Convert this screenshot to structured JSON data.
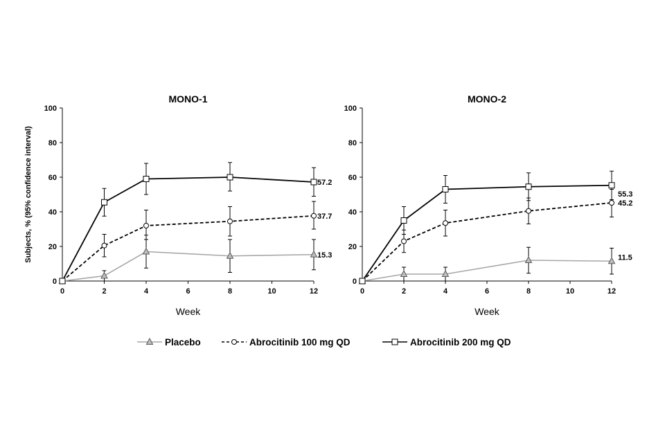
{
  "chart_data": [
    {
      "type": "line",
      "title": "MONO-1",
      "xlabel": "Week",
      "ylabel": "Subjects, % (95% confidence interval)",
      "xlim": [
        0,
        12
      ],
      "ylim": [
        0,
        100
      ],
      "xticks": [
        "0",
        "2",
        "4",
        "6",
        "8",
        "10",
        "12"
      ],
      "yticks": [
        "0",
        "20",
        "40",
        "60",
        "80",
        "100"
      ],
      "grid": false,
      "series": [
        {
          "name": "Placebo",
          "color": "#a6a6a6",
          "dash": "solid",
          "marker": "triangle",
          "x": [
            0,
            2,
            4,
            8,
            12
          ],
          "y": [
            0,
            3,
            17,
            14.5,
            15.3
          ],
          "ci_low": [
            0,
            0,
            7.5,
            5,
            6.5
          ],
          "ci_high": [
            0,
            6,
            26.5,
            24,
            24
          ]
        },
        {
          "name": "Abrocitinib 100 mg QD",
          "color": "#000000",
          "dash": "dashed",
          "marker": "circle",
          "x": [
            0,
            2,
            4,
            8,
            12
          ],
          "y": [
            0,
            20.5,
            32,
            34.5,
            37.7
          ],
          "ci_low": [
            0,
            14,
            24,
            26,
            30
          ],
          "ci_high": [
            0,
            27,
            41,
            43,
            46
          ]
        },
        {
          "name": "Abrocitinib 200 mg QD",
          "color": "#000000",
          "dash": "solid",
          "marker": "square",
          "x": [
            0,
            2,
            4,
            8,
            12
          ],
          "y": [
            0,
            45.5,
            59,
            60,
            57.2
          ],
          "ci_low": [
            0,
            37.5,
            50,
            52,
            49
          ],
          "ci_high": [
            0,
            53.5,
            68,
            68.5,
            65.5
          ]
        }
      ],
      "annotations": [
        "57.2",
        "37.7",
        "15.3"
      ]
    },
    {
      "type": "line",
      "title": "MONO-2",
      "xlabel": "Week",
      "ylabel": "",
      "xlim": [
        0,
        12
      ],
      "ylim": [
        0,
        100
      ],
      "xticks": [
        "0",
        "2",
        "4",
        "6",
        "8",
        "10",
        "12"
      ],
      "yticks": [
        "0",
        "20",
        "40",
        "60",
        "80",
        "100"
      ],
      "grid": false,
      "series": [
        {
          "name": "Placebo",
          "color": "#a6a6a6",
          "dash": "solid",
          "marker": "triangle",
          "x": [
            0,
            2,
            4,
            8,
            12
          ],
          "y": [
            0,
            4,
            4,
            12,
            11.5
          ],
          "ci_low": [
            0,
            0,
            0,
            4.5,
            4
          ],
          "ci_high": [
            0,
            8,
            8,
            19.5,
            19
          ]
        },
        {
          "name": "Abrocitinib 100 mg QD",
          "color": "#000000",
          "dash": "dashed",
          "marker": "circle",
          "x": [
            0,
            2,
            4,
            8,
            12
          ],
          "y": [
            0,
            23,
            33.5,
            40.5,
            45.2
          ],
          "ci_low": [
            0,
            16.5,
            26,
            33,
            37
          ],
          "ci_high": [
            0,
            29.5,
            41,
            48,
            53
          ]
        },
        {
          "name": "Abrocitinib 200 mg QD",
          "color": "#000000",
          "dash": "solid",
          "marker": "square",
          "x": [
            0,
            2,
            4,
            8,
            12
          ],
          "y": [
            0,
            35,
            53,
            54.5,
            55.3
          ],
          "ci_low": [
            0,
            27,
            45,
            46.5,
            47
          ],
          "ci_high": [
            0,
            43,
            61,
            62.5,
            63.5
          ]
        }
      ],
      "annotations": [
        "55.3",
        "45.2",
        "11.5"
      ]
    }
  ],
  "legend": {
    "position": "bottom",
    "items": [
      {
        "label": "Placebo",
        "color": "#a6a6a6",
        "dash": "solid",
        "marker": "triangle"
      },
      {
        "label": "Abrocitinib 100 mg QD",
        "color": "#000000",
        "dash": "dashed",
        "marker": "circle"
      },
      {
        "label": "Abrocitinib 200 mg QD",
        "color": "#000000",
        "dash": "solid",
        "marker": "square"
      }
    ]
  }
}
